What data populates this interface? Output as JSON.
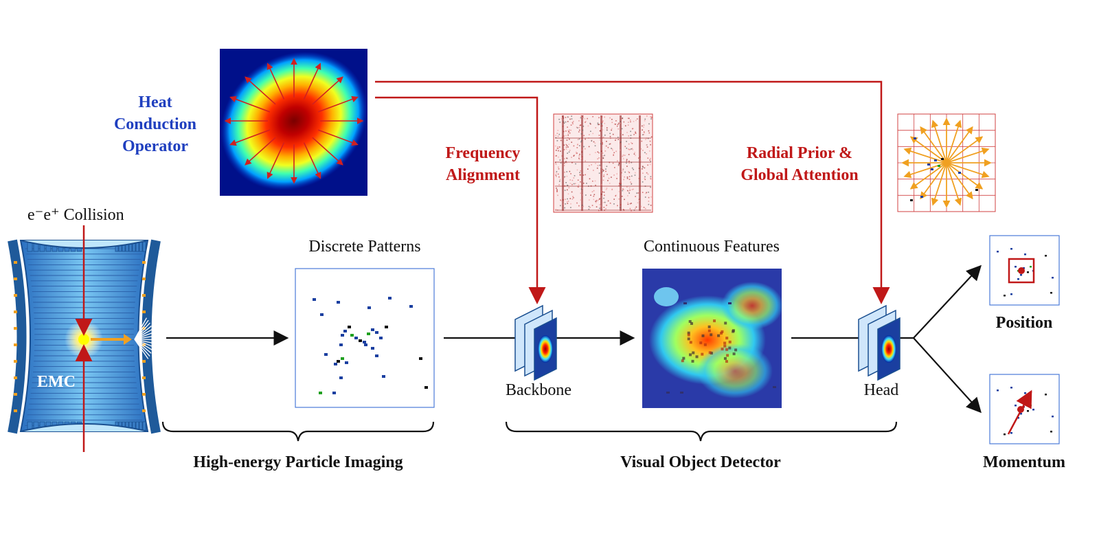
{
  "labels": {
    "heat_operator": [
      "Heat",
      "Conduction",
      "Operator"
    ],
    "collision": "e⁻e⁺ Collision",
    "emc": "EMC",
    "discrete_patterns": "Discrete Patterns",
    "frequency_alignment": [
      "Frequency",
      "Alignment"
    ],
    "continuous_features": "Continuous Features",
    "radial_prior": [
      "Radial Prior &",
      "Global Attention"
    ],
    "backbone": "Backbone",
    "head": "Head",
    "position": "Position",
    "momentum": "Momentum",
    "brace_left": "High-energy Particle Imaging",
    "brace_right": "Visual Object Detector"
  },
  "colors": {
    "red_arrow": "#c01818",
    "blue_text": "#1f3fbf",
    "orange_rays": "#f0a020",
    "emc_blue": "#3f8fd8"
  },
  "icons": [
    "heatmap-icon",
    "fft-spectrum-icon",
    "radial-grid-icon",
    "emc-detector-icon",
    "hit-pattern-icon",
    "feature-map-icon",
    "network-block-icon",
    "position-box-icon",
    "momentum-arrow-icon"
  ]
}
